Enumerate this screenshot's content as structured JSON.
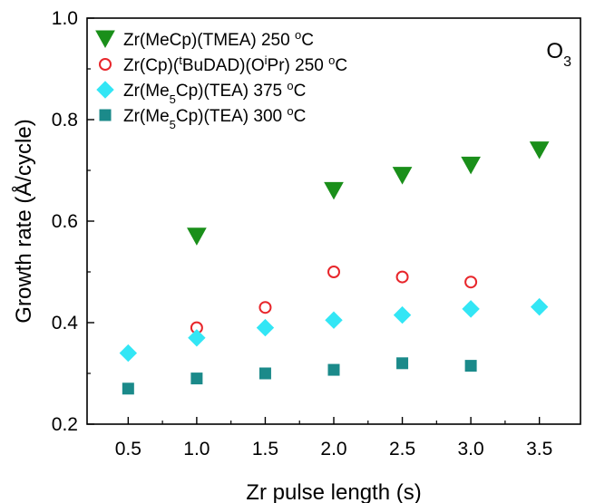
{
  "chart_data": {
    "type": "scatter",
    "title": "",
    "xlabel": "Zr pulse length (s)",
    "ylabel": "Growth rate (Å/cycle)",
    "xlim": [
      0.2,
      3.8
    ],
    "ylim": [
      0.2,
      1.0
    ],
    "xticks": [
      "0.5",
      "1.0",
      "1.5",
      "2.0",
      "2.5",
      "3.0",
      "3.5"
    ],
    "yticks": [
      "0.2",
      "0.4",
      "0.6",
      "0.8",
      "1.0"
    ],
    "grid": false,
    "legend_position": "top-left",
    "annotation": {
      "main": "O",
      "sub": "3"
    },
    "series": [
      {
        "legend_parts": [
          {
            "t": "Zr(MeCp)(TMEA) 250 "
          },
          {
            "t": "o",
            "sup": true
          },
          {
            "t": "C"
          }
        ],
        "marker": "triangle-down",
        "color": "#1a8f1a",
        "filled": true,
        "x": [
          1.0,
          2.0,
          2.5,
          3.0,
          3.5
        ],
        "y": [
          0.57,
          0.66,
          0.69,
          0.71,
          0.74
        ]
      },
      {
        "legend_parts": [
          {
            "t": "Zr(Cp)("
          },
          {
            "t": "t",
            "sup": true
          },
          {
            "t": "BuDAD)(O"
          },
          {
            "t": "i",
            "sup": true
          },
          {
            "t": "Pr) 250 "
          },
          {
            "t": "o",
            "sup": true
          },
          {
            "t": "C"
          }
        ],
        "marker": "circle",
        "color": "#e8262b",
        "filled": false,
        "x": [
          1.0,
          1.5,
          2.0,
          2.5,
          3.0
        ],
        "y": [
          0.39,
          0.43,
          0.5,
          0.49,
          0.48
        ]
      },
      {
        "legend_parts": [
          {
            "t": "Zr(Me"
          },
          {
            "t": "5",
            "sub": true
          },
          {
            "t": "Cp)(TEA) 375 "
          },
          {
            "t": "o",
            "sup": true
          },
          {
            "t": "C"
          }
        ],
        "marker": "diamond",
        "color": "#33e6f5",
        "filled": true,
        "x": [
          0.5,
          1.0,
          1.5,
          2.0,
          2.5,
          3.0,
          3.5
        ],
        "y": [
          0.34,
          0.37,
          0.39,
          0.405,
          0.415,
          0.427,
          0.431
        ]
      },
      {
        "legend_parts": [
          {
            "t": "Zr(Me"
          },
          {
            "t": "5",
            "sub": true
          },
          {
            "t": "Cp)(TEA) 300 "
          },
          {
            "t": "o",
            "sup": true
          },
          {
            "t": "C"
          }
        ],
        "marker": "square",
        "color": "#1b8a8a",
        "filled": true,
        "x": [
          0.5,
          1.0,
          1.5,
          2.0,
          2.5,
          3.0
        ],
        "y": [
          0.27,
          0.29,
          0.3,
          0.307,
          0.32,
          0.315
        ]
      }
    ]
  }
}
